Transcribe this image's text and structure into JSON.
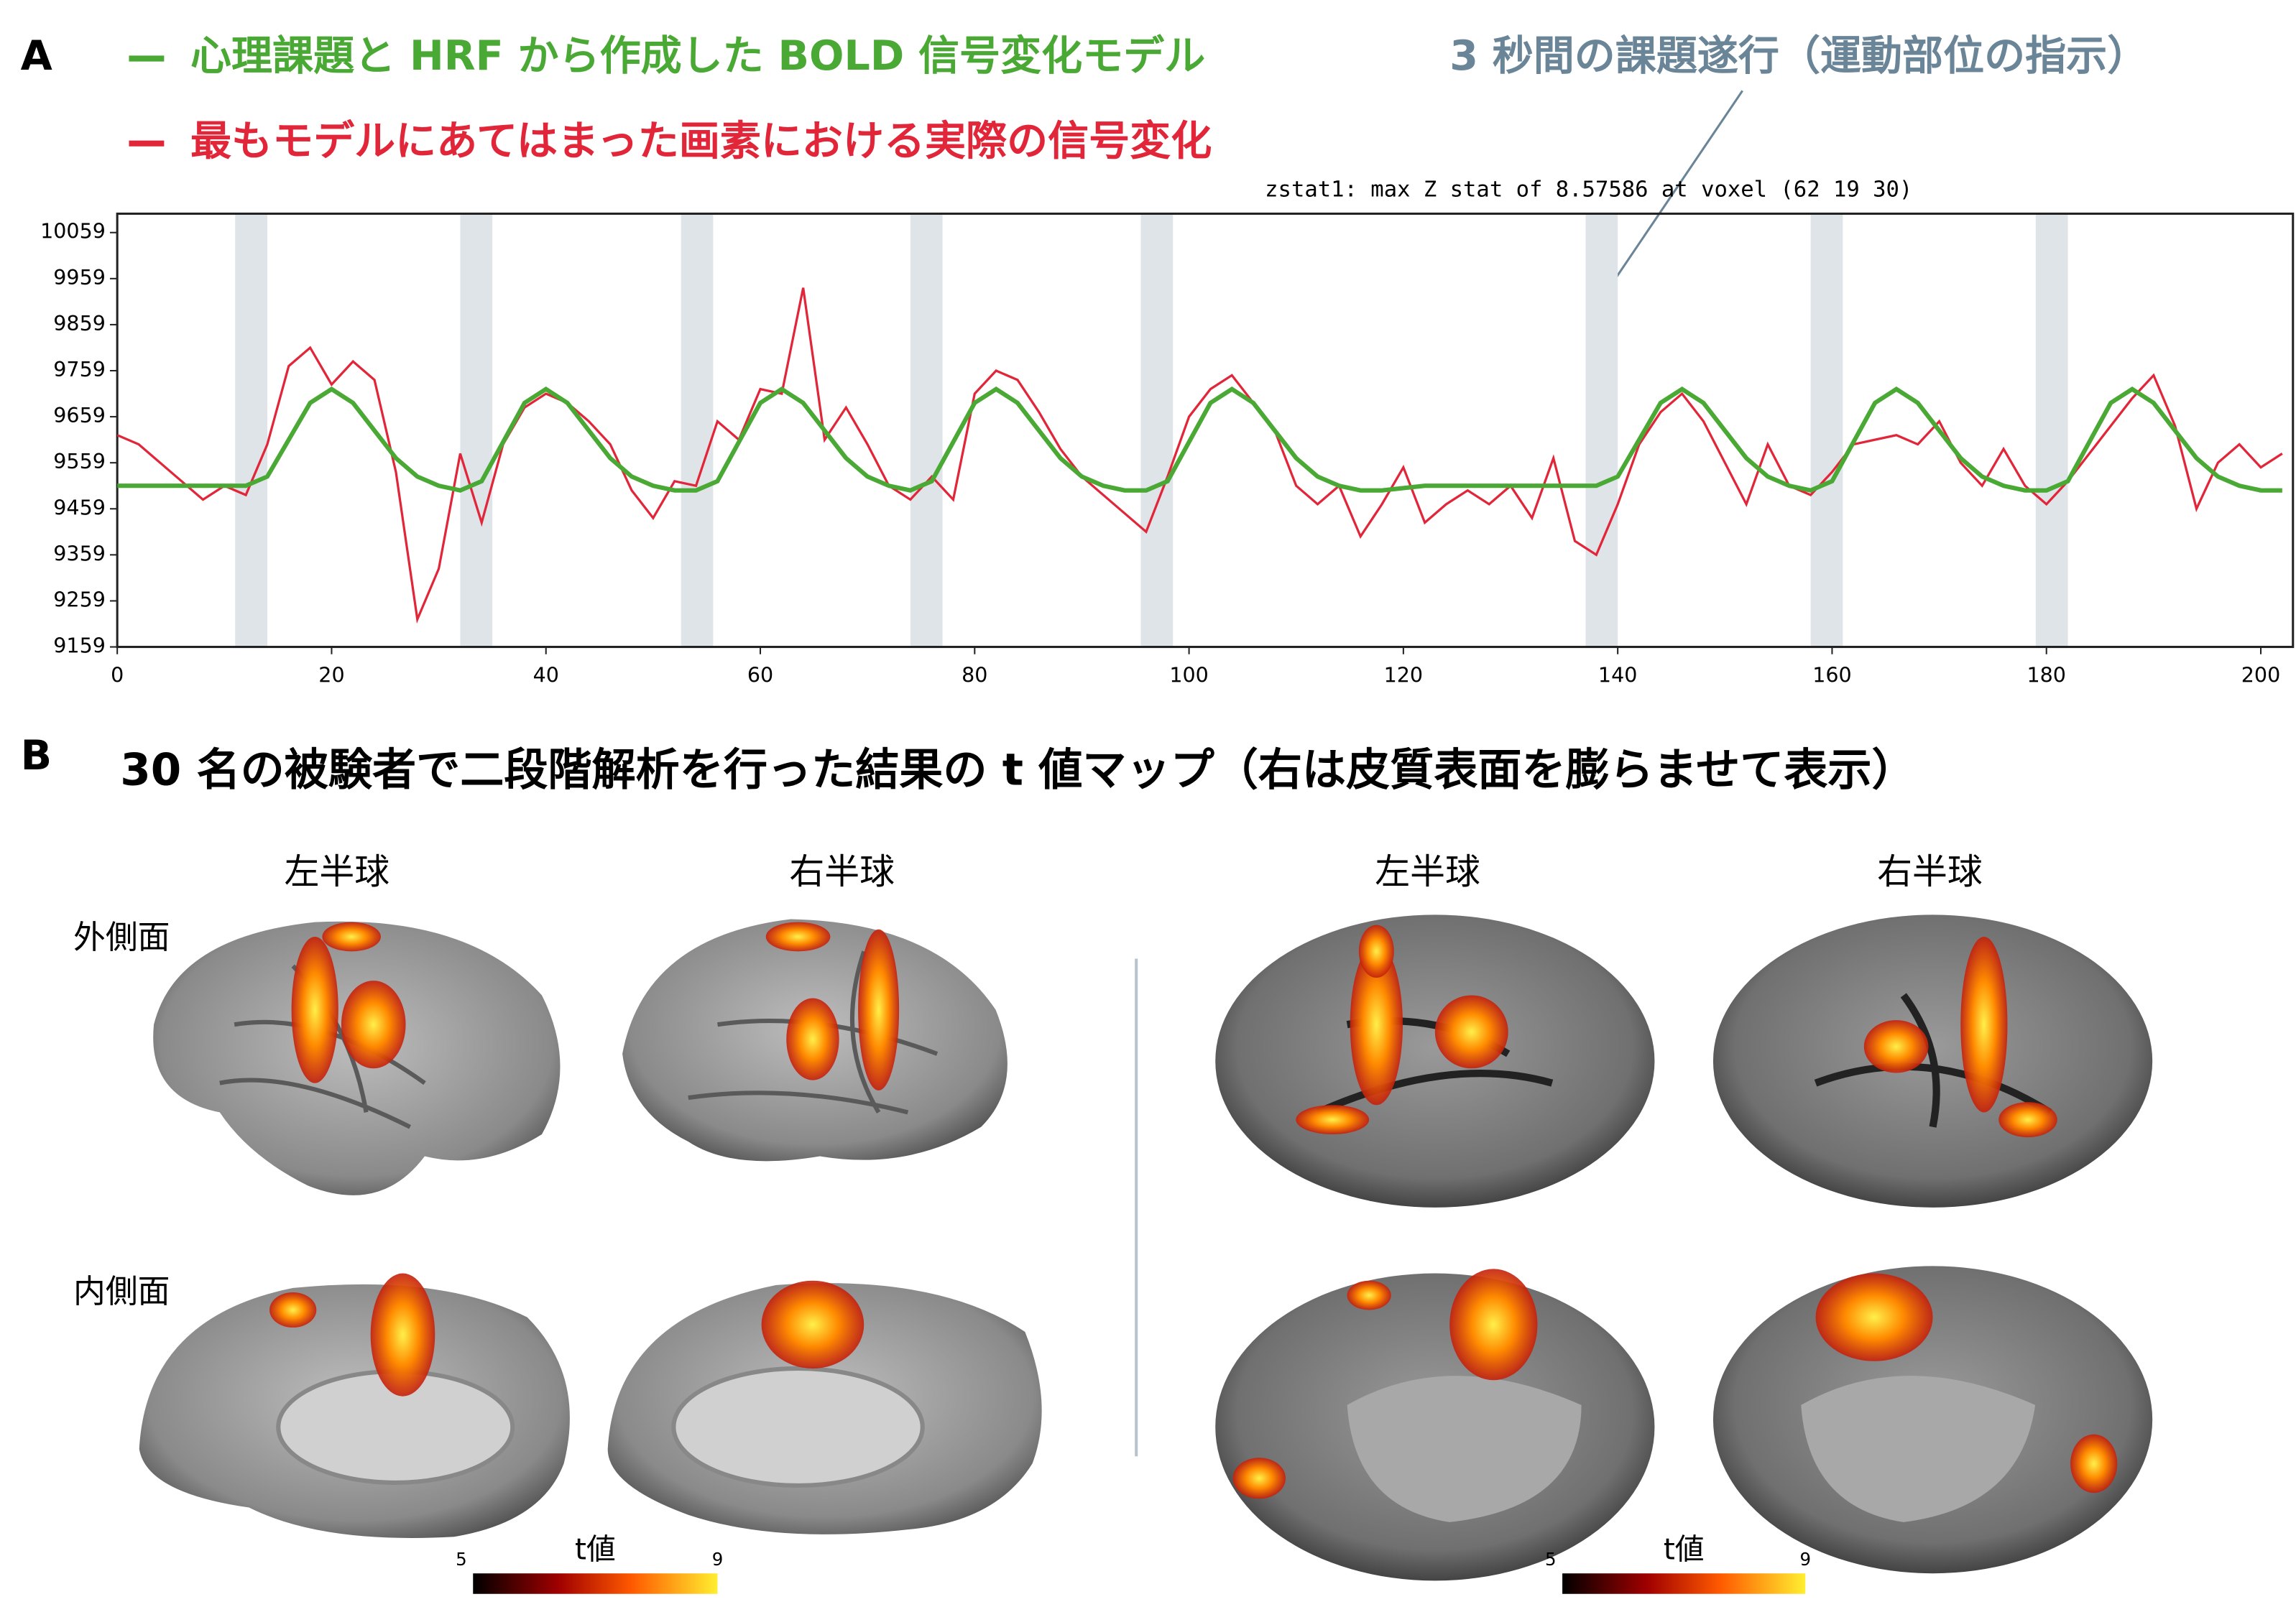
{
  "chart_data": {
    "type": "line",
    "panel_label": "A",
    "subtitle": "zstat1: max Z stat of 8.57586 at voxel (62 19 30)",
    "annotation": "3 秒間の課題遂行（運動部位の指示）",
    "x": [
      0,
      2,
      4,
      6,
      8,
      10,
      12,
      14,
      16,
      18,
      20,
      22,
      24,
      26,
      28,
      30,
      32,
      34,
      36,
      38,
      40,
      42,
      44,
      46,
      48,
      50,
      52,
      54,
      56,
      58,
      60,
      62,
      64,
      66,
      68,
      70,
      72,
      74,
      76,
      78,
      80,
      82,
      84,
      86,
      88,
      90,
      92,
      94,
      96,
      98,
      100,
      102,
      104,
      106,
      108,
      110,
      112,
      114,
      116,
      118,
      120,
      122,
      124,
      126,
      128,
      130,
      132,
      134,
      136,
      138,
      140,
      142,
      144,
      146,
      148,
      150,
      152,
      154,
      156,
      158,
      160,
      162,
      164,
      166,
      168,
      170,
      172,
      174,
      176,
      178,
      180,
      182,
      184,
      186,
      188,
      190,
      192,
      194,
      196,
      198,
      200,
      202
    ],
    "xlim": [
      0,
      203
    ],
    "xticks": [
      0,
      20,
      40,
      60,
      80,
      100,
      120,
      140,
      160,
      180,
      200
    ],
    "ylim": [
      9159,
      10100
    ],
    "yticks": [
      9159,
      9259,
      9359,
      9459,
      9559,
      9659,
      9759,
      9859,
      9959,
      10059
    ],
    "shaded_regions": [
      [
        11,
        14
      ],
      [
        32,
        35
      ],
      [
        52.6,
        55.6
      ],
      [
        74,
        77
      ],
      [
        95.5,
        98.5
      ],
      [
        137,
        140
      ],
      [
        158,
        161
      ],
      [
        179,
        182
      ]
    ],
    "shaded_color": "#dfe4e8",
    "series": [
      {
        "name": "心理課題と HRF から作成した BOLD 信号変化モデル",
        "color": "#4aa934",
        "values": [
          9509,
          9509,
          9509,
          9509,
          9509,
          9509,
          9509,
          9529,
          9609,
          9689,
          9719,
          9689,
          9629,
          9569,
          9529,
          9509,
          9499,
          9519,
          9604,
          9689,
          9719,
          9689,
          9629,
          9569,
          9529,
          9509,
          9499,
          9499,
          9519,
          9604,
          9689,
          9719,
          9689,
          9629,
          9569,
          9529,
          9509,
          9499,
          9519,
          9604,
          9689,
          9719,
          9689,
          9629,
          9569,
          9529,
          9509,
          9499,
          9499,
          9519,
          9604,
          9689,
          9719,
          9689,
          9629,
          9569,
          9529,
          9509,
          9499,
          9499,
          9504,
          9509,
          9509,
          9509,
          9509,
          9509,
          9509,
          9509,
          9509,
          9509,
          9529,
          9609,
          9689,
          9719,
          9689,
          9629,
          9569,
          9529,
          9509,
          9499,
          9519,
          9604,
          9689,
          9719,
          9689,
          9629,
          9569,
          9529,
          9509,
          9499,
          9499,
          9519,
          9604,
          9689,
          9719,
          9689,
          9629,
          9569,
          9529,
          9509,
          9499,
          9499
        ]
      },
      {
        "name": "最もモデルにあてはまった画素における実際の信号変化",
        "color": "#e2263a",
        "values": [
          9619,
          9599,
          9559,
          9519,
          9479,
          9509,
          9489,
          9599,
          9769,
          9809,
          9729,
          9779,
          9739,
          9539,
          9219,
          9329,
          9579,
          9429,
          9599,
          9679,
          9709,
          9689,
          9649,
          9599,
          9499,
          9439,
          9519,
          9509,
          9649,
          9609,
          9719,
          9709,
          9939,
          9609,
          9679,
          9599,
          9509,
          9479,
          9529,
          9479,
          9709,
          9759,
          9739,
          9669,
          9589,
          9529,
          9489,
          9449,
          9409,
          9529,
          9659,
          9719,
          9749,
          9689,
          9629,
          9509,
          9469,
          9509,
          9399,
          9469,
          9549,
          9429,
          9469,
          9499,
          9469,
          9509,
          9439,
          9569,
          9389,
          9359,
          9469,
          9599,
          9669,
          9709,
          9649,
          9559,
          9469,
          9599,
          9509,
          9489,
          9539,
          9599,
          9609,
          9619,
          9599,
          9649,
          9559,
          9509,
          9589,
          9509,
          9469,
          9519,
          9579,
          9639,
          9699,
          9749,
          9639,
          9459,
          9559,
          9599,
          9549,
          9579
        ]
      }
    ]
  },
  "panel_b": {
    "label": "B",
    "title": "30 名の被験者で二段階解析を行った結果の t 値マップ（右は皮質表面を膨らませて表示）",
    "rows": [
      "外側面",
      "内側面"
    ],
    "groups": [
      {
        "columns": [
          "左半球",
          "右半球"
        ],
        "colorbar": {
          "label": "t値",
          "range": [
            5,
            9
          ],
          "ticks": [
            5,
            9
          ]
        }
      },
      {
        "columns": [
          "左半球",
          "右半球"
        ],
        "colorbar": {
          "label": "t値",
          "range": [
            5,
            9
          ],
          "ticks": [
            5,
            9
          ]
        }
      }
    ]
  }
}
